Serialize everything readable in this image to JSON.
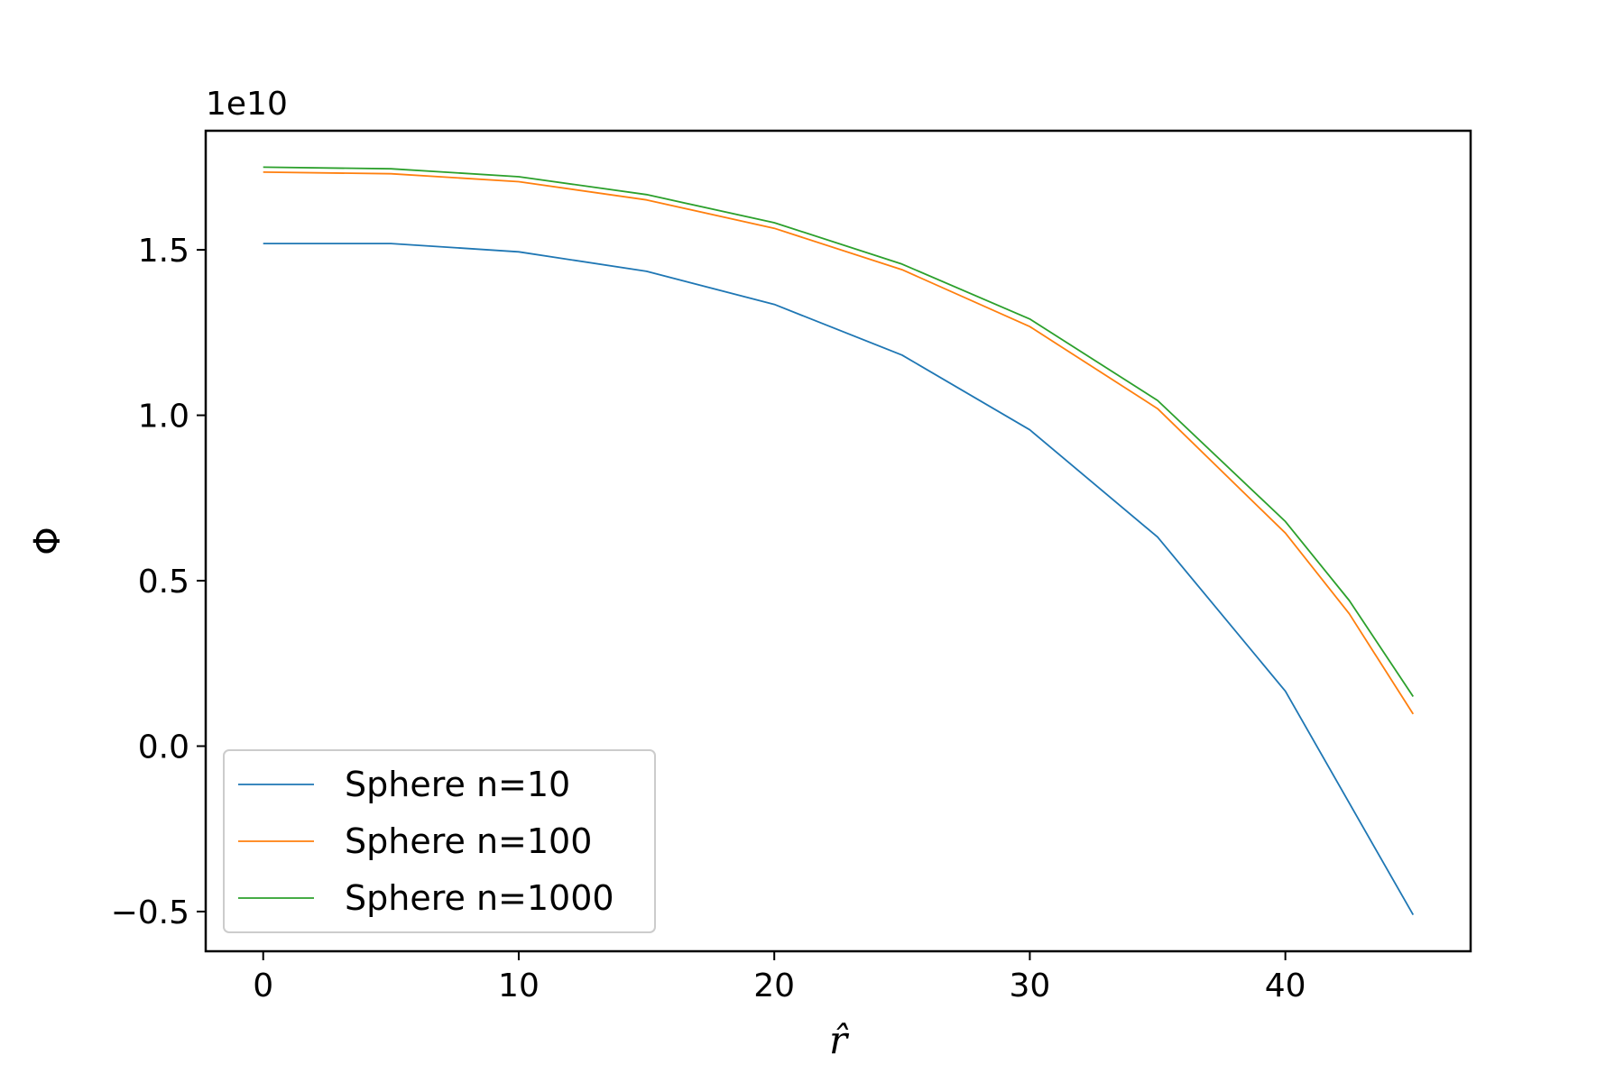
{
  "chart_data": {
    "type": "line",
    "title": "",
    "xlabel": "r̂",
    "ylabel": "Φ",
    "offset_label": "1e10",
    "xlim": [
      -2.25,
      47.25
    ],
    "ylim": [
      -0.62,
      1.86
    ],
    "xticks": [
      0,
      10,
      20,
      30,
      40
    ],
    "xtick_labels": [
      "0",
      "10",
      "20",
      "30",
      "40"
    ],
    "yticks": [
      -0.5,
      0.0,
      0.5,
      1.0,
      1.5
    ],
    "ytick_labels": [
      "−0.5",
      "0.0",
      "0.5",
      "1.0",
      "1.5"
    ],
    "grid": false,
    "legend_position": "lower-left",
    "series": [
      {
        "name": "Sphere n=10",
        "color": "#1f77b4",
        "x": [
          0,
          5,
          10,
          15,
          20,
          25,
          30,
          35,
          40,
          45
        ],
        "y": [
          1.519,
          1.519,
          1.494,
          1.435,
          1.335,
          1.182,
          0.956,
          0.632,
          0.166,
          -0.51
        ]
      },
      {
        "name": "Sphere n=100",
        "color": "#ff7f0e",
        "x": [
          0,
          5,
          10,
          15,
          20,
          25,
          30,
          35,
          40,
          42.5,
          45
        ],
        "y": [
          1.735,
          1.73,
          1.706,
          1.651,
          1.565,
          1.44,
          1.268,
          1.02,
          0.644,
          0.4,
          0.097
        ]
      },
      {
        "name": "Sphere n=1000",
        "color": "#2ca02c",
        "x": [
          0,
          5,
          10,
          15,
          20,
          25,
          30,
          35,
          40,
          42.5,
          45
        ],
        "y": [
          1.75,
          1.745,
          1.721,
          1.667,
          1.582,
          1.457,
          1.291,
          1.045,
          0.679,
          0.44,
          0.15
        ]
      }
    ]
  }
}
